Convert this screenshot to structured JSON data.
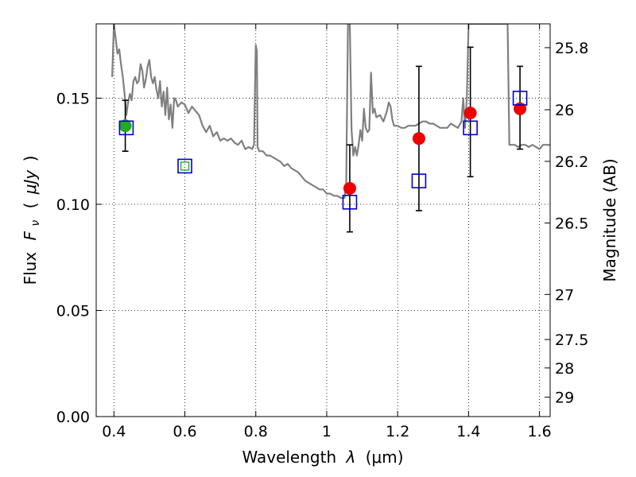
{
  "chart_data": {
    "type": "scatter",
    "title": "",
    "xlabel": "Wavelength",
    "xlabel_symbol": "λ",
    "xlabel_unit": "(μm)",
    "ylabel": "Flux",
    "ylabel_symbol": "F",
    "ylabel_symbol_sub": "ν",
    "ylabel_unit": "μJy",
    "ylabel_paren_open": "(",
    "ylabel_paren_close": ")",
    "y2label": "Magnitude (AB)",
    "xlim": [
      0.35,
      1.63
    ],
    "ylim": [
      0.0,
      0.185
    ],
    "grid": true,
    "x_ticks": [
      0.4,
      0.6,
      0.8,
      1.0,
      1.2,
      1.4,
      1.6
    ],
    "x_tick_labels": [
      "0.4",
      "0.6",
      "0.8",
      "1",
      "1.2",
      "1.4",
      "1.6"
    ],
    "y_ticks": [
      0.0,
      0.05,
      0.1,
      0.15
    ],
    "y_tick_labels": [
      "0.00",
      "0.05",
      "0.10",
      "0.15"
    ],
    "y2_ticks": [
      {
        "mag": 25.8,
        "label": "25.8"
      },
      {
        "mag": 26.0,
        "label": "26"
      },
      {
        "mag": 26.2,
        "label": "26.2"
      },
      {
        "mag": 26.5,
        "label": "26.5"
      },
      {
        "mag": 27.0,
        "label": "27"
      },
      {
        "mag": 27.5,
        "label": "27.5"
      },
      {
        "mag": 28.0,
        "label": "28"
      },
      {
        "mag": 29.0,
        "label": "29"
      }
    ],
    "series": [
      {
        "kind": "spectrum",
        "color": "#808080",
        "points": [
          [
            0.395,
            0.16
          ],
          [
            0.4,
            0.185
          ],
          [
            0.405,
            0.178
          ],
          [
            0.41,
            0.171
          ],
          [
            0.415,
            0.173
          ],
          [
            0.42,
            0.166
          ],
          [
            0.425,
            0.16
          ],
          [
            0.43,
            0.152
          ],
          [
            0.435,
            0.142
          ],
          [
            0.44,
            0.148
          ],
          [
            0.445,
            0.152
          ],
          [
            0.45,
            0.149
          ],
          [
            0.455,
            0.158
          ],
          [
            0.46,
            0.16
          ],
          [
            0.465,
            0.157
          ],
          [
            0.47,
            0.158
          ],
          [
            0.475,
            0.166
          ],
          [
            0.48,
            0.163
          ],
          [
            0.485,
            0.155
          ],
          [
            0.49,
            0.159
          ],
          [
            0.495,
            0.165
          ],
          [
            0.5,
            0.168
          ],
          [
            0.505,
            0.16
          ],
          [
            0.51,
            0.157
          ],
          [
            0.515,
            0.16
          ],
          [
            0.52,
            0.154
          ],
          [
            0.525,
            0.15
          ],
          [
            0.53,
            0.158
          ],
          [
            0.535,
            0.146
          ],
          [
            0.54,
            0.153
          ],
          [
            0.545,
            0.142
          ],
          [
            0.55,
            0.155
          ],
          [
            0.555,
            0.14
          ],
          [
            0.56,
            0.147
          ],
          [
            0.565,
            0.136
          ],
          [
            0.57,
            0.15
          ],
          [
            0.575,
            0.149
          ],
          [
            0.58,
            0.146
          ],
          [
            0.59,
            0.148
          ],
          [
            0.6,
            0.147
          ],
          [
            0.61,
            0.143
          ],
          [
            0.62,
            0.146
          ],
          [
            0.63,
            0.144
          ],
          [
            0.64,
            0.142
          ],
          [
            0.65,
            0.137
          ],
          [
            0.66,
            0.134
          ],
          [
            0.67,
            0.137
          ],
          [
            0.68,
            0.132
          ],
          [
            0.69,
            0.134
          ],
          [
            0.7,
            0.13
          ],
          [
            0.71,
            0.131
          ],
          [
            0.72,
            0.13
          ],
          [
            0.73,
            0.131
          ],
          [
            0.74,
            0.129
          ],
          [
            0.75,
            0.128
          ],
          [
            0.76,
            0.13
          ],
          [
            0.77,
            0.126
          ],
          [
            0.78,
            0.127
          ],
          [
            0.79,
            0.126
          ],
          [
            0.795,
            0.128
          ],
          [
            0.8,
            0.175
          ],
          [
            0.803,
            0.172
          ],
          [
            0.805,
            0.127
          ],
          [
            0.81,
            0.125
          ],
          [
            0.82,
            0.125
          ],
          [
            0.83,
            0.123
          ],
          [
            0.84,
            0.123
          ],
          [
            0.85,
            0.122
          ],
          [
            0.86,
            0.121
          ],
          [
            0.87,
            0.12
          ],
          [
            0.88,
            0.118
          ],
          [
            0.89,
            0.119
          ],
          [
            0.9,
            0.117
          ],
          [
            0.91,
            0.116
          ],
          [
            0.92,
            0.115
          ],
          [
            0.93,
            0.113
          ],
          [
            0.94,
            0.111
          ],
          [
            0.95,
            0.11
          ],
          [
            0.96,
            0.109
          ],
          [
            0.97,
            0.108
          ],
          [
            0.98,
            0.107
          ],
          [
            0.99,
            0.107
          ],
          [
            1.0,
            0.105
          ],
          [
            1.01,
            0.105
          ],
          [
            1.02,
            0.104
          ],
          [
            1.03,
            0.104
          ],
          [
            1.04,
            0.103
          ],
          [
            1.05,
            0.103
          ],
          [
            1.055,
            0.11
          ],
          [
            1.06,
            0.185
          ],
          [
            1.065,
            0.185
          ],
          [
            1.07,
            0.135
          ],
          [
            1.075,
            0.123
          ],
          [
            1.08,
            0.127
          ],
          [
            1.085,
            0.123
          ],
          [
            1.09,
            0.128
          ],
          [
            1.095,
            0.135
          ],
          [
            1.1,
            0.13
          ],
          [
            1.105,
            0.145
          ],
          [
            1.11,
            0.136
          ],
          [
            1.115,
            0.134
          ],
          [
            1.12,
            0.135
          ],
          [
            1.125,
            0.162
          ],
          [
            1.13,
            0.143
          ],
          [
            1.135,
            0.145
          ],
          [
            1.14,
            0.141
          ],
          [
            1.15,
            0.142
          ],
          [
            1.16,
            0.139
          ],
          [
            1.17,
            0.144
          ],
          [
            1.175,
            0.148
          ],
          [
            1.18,
            0.146
          ],
          [
            1.185,
            0.14
          ],
          [
            1.19,
            0.137
          ],
          [
            1.2,
            0.137
          ],
          [
            1.21,
            0.136
          ],
          [
            1.22,
            0.136
          ],
          [
            1.23,
            0.137
          ],
          [
            1.24,
            0.137
          ],
          [
            1.25,
            0.137
          ],
          [
            1.26,
            0.138
          ],
          [
            1.27,
            0.139
          ],
          [
            1.28,
            0.139
          ],
          [
            1.29,
            0.138
          ],
          [
            1.3,
            0.138
          ],
          [
            1.31,
            0.137
          ],
          [
            1.32,
            0.136
          ],
          [
            1.33,
            0.136
          ],
          [
            1.34,
            0.136
          ],
          [
            1.35,
            0.138
          ],
          [
            1.36,
            0.137
          ],
          [
            1.37,
            0.136
          ],
          [
            1.38,
            0.139
          ],
          [
            1.385,
            0.15
          ],
          [
            1.39,
            0.136
          ],
          [
            1.395,
            0.15
          ],
          [
            1.4,
            0.185
          ],
          [
            1.405,
            0.185
          ],
          [
            1.51,
            0.185
          ],
          [
            1.515,
            0.128
          ],
          [
            1.52,
            0.128
          ],
          [
            1.53,
            0.128
          ],
          [
            1.54,
            0.127
          ],
          [
            1.55,
            0.128
          ],
          [
            1.56,
            0.128
          ],
          [
            1.57,
            0.127
          ],
          [
            1.58,
            0.128
          ],
          [
            1.59,
            0.127
          ],
          [
            1.6,
            0.126
          ],
          [
            1.61,
            0.128
          ],
          [
            1.62,
            0.128
          ],
          [
            1.63,
            0.128
          ]
        ]
      },
      {
        "kind": "model-squares",
        "color": "#0000cc",
        "points": [
          {
            "x": 0.435,
            "y": 0.136
          },
          {
            "x": 0.6,
            "y": 0.118
          },
          {
            "x": 1.065,
            "y": 0.101
          },
          {
            "x": 1.26,
            "y": 0.111
          },
          {
            "x": 1.405,
            "y": 0.136
          },
          {
            "x": 1.545,
            "y": 0.15
          }
        ]
      },
      {
        "kind": "observed-green",
        "color": "#22aa22",
        "points": [
          {
            "x": 0.432,
            "y": 0.137,
            "yerr_low": 0.125,
            "yerr_high": 0.149
          },
          {
            "x": 0.6,
            "y": 0.118,
            "marker": "small-square"
          }
        ]
      },
      {
        "kind": "observed-red",
        "color": "#ee0000",
        "points": [
          {
            "x": 1.065,
            "y": 0.1075,
            "yerr_low": 0.087,
            "yerr_high": 0.128
          },
          {
            "x": 1.26,
            "y": 0.131,
            "yerr_low": 0.097,
            "yerr_high": 0.165
          },
          {
            "x": 1.405,
            "y": 0.143,
            "yerr_low": 0.113,
            "yerr_high": 0.174
          },
          {
            "x": 1.545,
            "y": 0.145,
            "yerr_low": 0.126,
            "yerr_high": 0.165
          }
        ]
      }
    ]
  }
}
